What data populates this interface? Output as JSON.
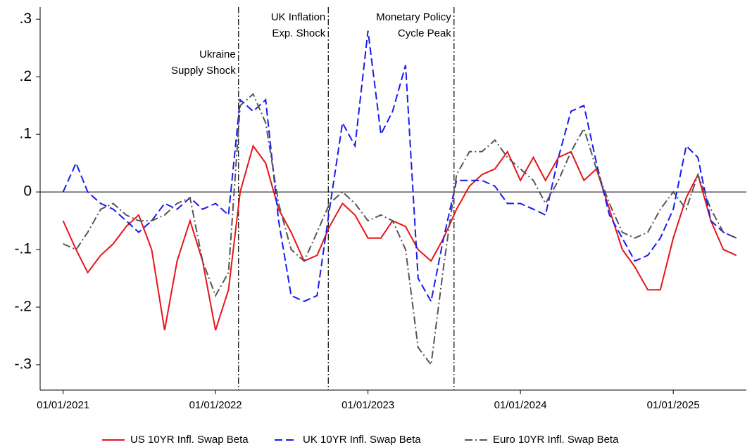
{
  "chart_data": {
    "type": "line",
    "x": [
      "01/01/2021",
      "02/01/2021",
      "03/01/2021",
      "04/01/2021",
      "05/01/2021",
      "06/01/2021",
      "07/01/2021",
      "08/01/2021",
      "09/01/2021",
      "10/01/2021",
      "11/01/2021",
      "12/01/2021",
      "01/01/2022",
      "02/01/2022",
      "03/01/2022",
      "04/01/2022",
      "05/01/2022",
      "06/01/2022",
      "07/01/2022",
      "08/01/2022",
      "09/01/2022",
      "10/01/2022",
      "11/01/2022",
      "12/01/2022",
      "01/01/2023",
      "02/01/2023",
      "03/01/2023",
      "04/01/2023",
      "05/01/2023",
      "06/01/2023",
      "07/01/2023",
      "08/01/2023",
      "09/01/2023",
      "10/01/2023",
      "11/01/2023",
      "12/01/2023",
      "01/01/2024",
      "02/01/2024",
      "03/01/2024",
      "04/01/2024",
      "05/01/2024",
      "06/01/2024",
      "07/01/2024",
      "08/01/2024",
      "09/01/2024",
      "10/01/2024",
      "11/01/2024",
      "12/01/2024",
      "01/01/2025",
      "02/01/2025",
      "03/01/2025",
      "04/01/2025",
      "05/01/2025",
      "06/01/2025"
    ],
    "series": [
      {
        "name": "US 10YR Infl. Swap Beta",
        "color": "#e8141b",
        "line_style": "solid",
        "values": [
          -0.05,
          -0.1,
          -0.14,
          -0.11,
          -0.09,
          -0.06,
          -0.04,
          -0.1,
          -0.24,
          -0.12,
          -0.05,
          -0.12,
          -0.24,
          -0.17,
          0.0,
          0.08,
          0.05,
          -0.03,
          -0.07,
          -0.12,
          -0.11,
          -0.06,
          -0.02,
          -0.04,
          -0.08,
          -0.08,
          -0.05,
          -0.06,
          -0.1,
          -0.12,
          -0.08,
          -0.03,
          0.01,
          0.03,
          0.04,
          0.07,
          0.02,
          0.06,
          0.02,
          0.06,
          0.07,
          0.02,
          0.04,
          -0.03,
          -0.1,
          -0.13,
          -0.17,
          -0.17,
          -0.08,
          -0.01,
          0.03,
          -0.05,
          -0.1,
          -0.11
        ]
      },
      {
        "name": "UK 10YR Infl. Swap Beta",
        "color": "#1a1aee",
        "line_style": "dashed",
        "values": [
          0.0,
          0.05,
          0.0,
          -0.02,
          -0.03,
          -0.05,
          -0.07,
          -0.05,
          -0.02,
          -0.03,
          -0.01,
          -0.03,
          -0.02,
          -0.04,
          0.16,
          0.14,
          0.16,
          -0.05,
          -0.18,
          -0.19,
          -0.18,
          -0.03,
          0.12,
          0.08,
          0.28,
          0.1,
          0.14,
          0.22,
          -0.15,
          -0.19,
          -0.08,
          0.02,
          0.02,
          0.02,
          0.01,
          -0.02,
          -0.02,
          -0.03,
          -0.04,
          0.06,
          0.14,
          0.15,
          0.05,
          -0.04,
          -0.08,
          -0.12,
          -0.11,
          -0.08,
          -0.03,
          0.08,
          0.06,
          -0.05,
          -0.07,
          -0.08
        ]
      },
      {
        "name": "Euro 10YR Infl. Swap Beta",
        "color": "#555555",
        "line_style": "dashdot",
        "values": [
          -0.09,
          -0.1,
          -0.07,
          -0.03,
          -0.02,
          -0.04,
          -0.05,
          -0.05,
          -0.04,
          -0.02,
          -0.01,
          -0.12,
          -0.18,
          -0.14,
          0.15,
          0.17,
          0.12,
          -0.02,
          -0.1,
          -0.12,
          -0.07,
          -0.02,
          0.0,
          -0.02,
          -0.05,
          -0.04,
          -0.05,
          -0.1,
          -0.27,
          -0.3,
          -0.13,
          0.03,
          0.07,
          0.07,
          0.09,
          0.06,
          0.04,
          0.02,
          -0.02,
          0.02,
          0.07,
          0.11,
          0.04,
          -0.02,
          -0.07,
          -0.08,
          -0.07,
          -0.03,
          0.0,
          -0.03,
          0.03,
          -0.03,
          -0.07,
          -0.08
        ]
      }
    ],
    "xlim": [
      "11/07/2020",
      "06/25/2025"
    ],
    "xticks": [
      "01/01/2021",
      "01/01/2022",
      "01/01/2023",
      "01/01/2024",
      "01/01/2025"
    ],
    "ylim": [
      -0.344,
      0.315
    ],
    "yticks": [
      {
        "value": -0.3,
        "label": "-.3"
      },
      {
        "value": -0.2,
        "label": "-.2"
      },
      {
        "value": -0.1,
        "label": "-.1"
      },
      0,
      {
        "value": 0.1,
        "label": ".1"
      },
      {
        "value": 0.2,
        "label": ".2"
      },
      {
        "value": 0.3,
        "label": ".3"
      }
    ],
    "zero_line": true,
    "events": [
      {
        "x": "02/25/2022",
        "label": [
          "Ukraine",
          "Supply Shock"
        ]
      },
      {
        "x": "09/28/2022",
        "label": [
          "UK Inflation",
          "Exp. Shock"
        ]
      },
      {
        "x": "07/26/2023",
        "label": [
          "Monetary Policy",
          "Cycle Peak"
        ]
      }
    ],
    "legend": "bottom"
  }
}
